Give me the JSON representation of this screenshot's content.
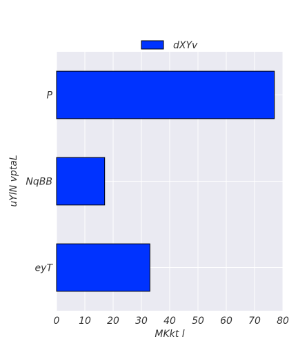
{
  "chart_data": {
    "type": "bar",
    "orientation": "horizontal",
    "categories": [
      "P",
      "NqBB",
      "eyT"
    ],
    "series": [
      {
        "name": "dXYv",
        "values": [
          77,
          17,
          33
        ],
        "color": "#0033ff"
      }
    ],
    "xlabel": "MKkt  l",
    "ylabel": "uYlN vptaL",
    "xlim": [
      0,
      80
    ],
    "xticks": [
      0,
      10,
      20,
      30,
      40,
      50,
      60,
      70,
      80
    ],
    "grid": true,
    "legend_position": "top-center",
    "colors": {
      "background": "#eaeaf2",
      "grid": "#ffffff",
      "bar_edge": "#000000"
    }
  }
}
